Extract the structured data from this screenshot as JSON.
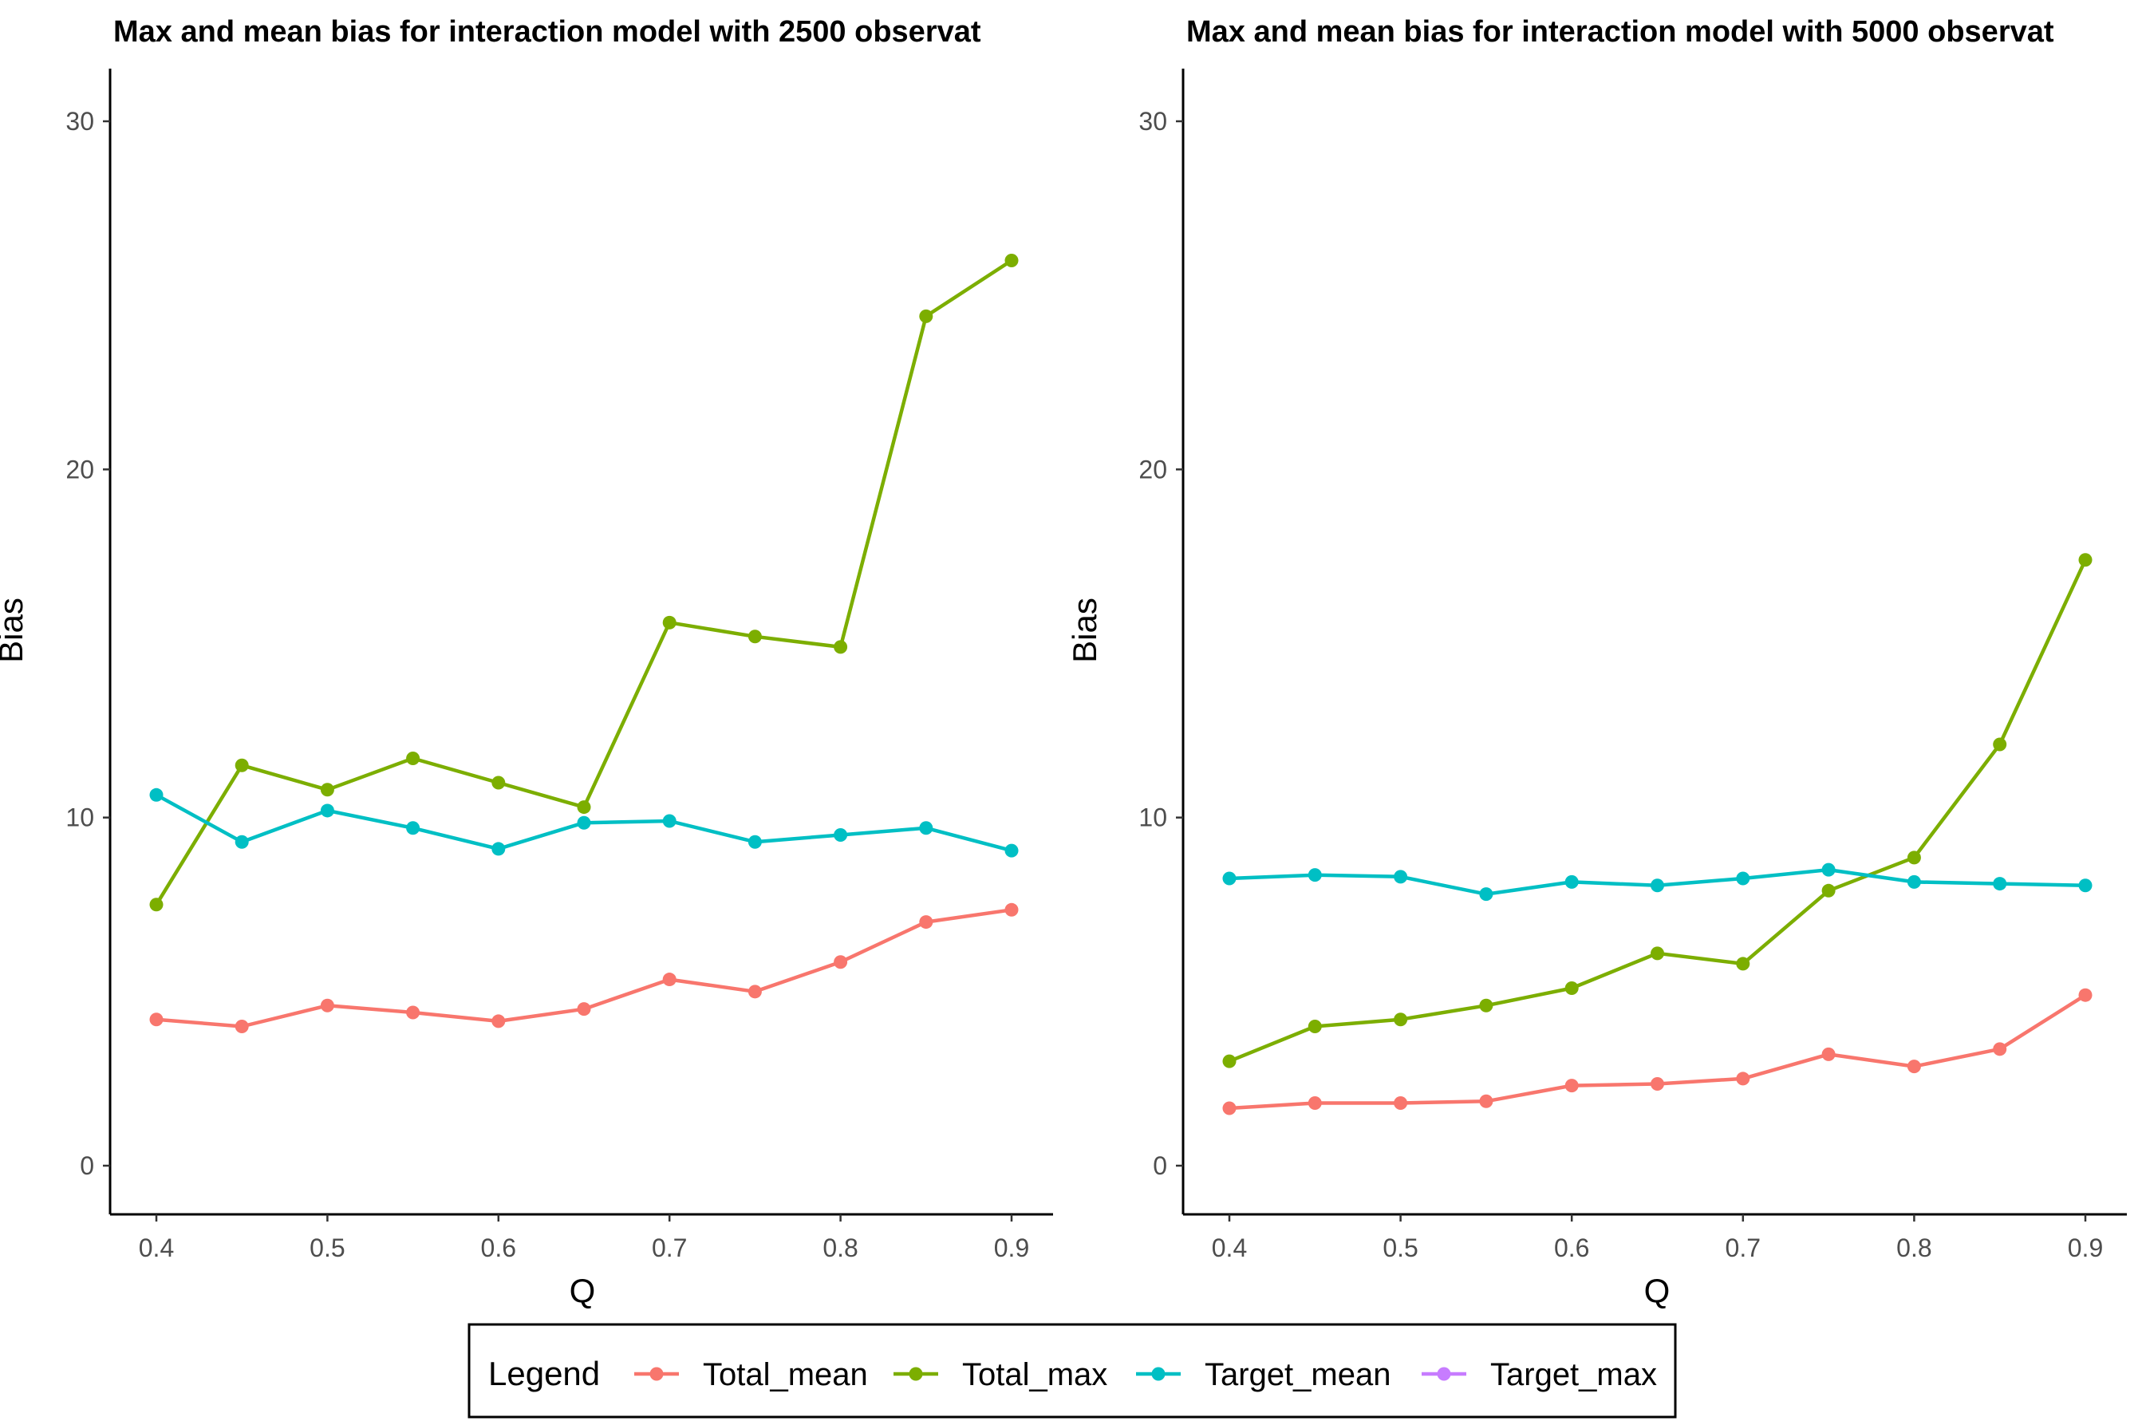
{
  "chart_data": [
    {
      "type": "line",
      "title": "Max and mean bias for interaction model with 2500 observat",
      "xlabel": "Q",
      "ylabel": "Bias",
      "x": [
        0.4,
        0.45,
        0.5,
        0.55,
        0.6,
        0.65,
        0.7,
        0.75,
        0.8,
        0.85,
        0.9
      ],
      "x_ticks": [
        "0.4",
        "0.5",
        "0.6",
        "0.7",
        "0.8",
        "0.9"
      ],
      "y_ticks": [
        "0",
        "10",
        "20",
        "30"
      ],
      "xlim": [
        0.4,
        0.9
      ],
      "ylim": [
        0,
        30
      ],
      "grid": false,
      "series": [
        {
          "name": "Total_mean",
          "color": "#F8766D",
          "values": [
            4.2,
            4.0,
            4.6,
            4.4,
            4.15,
            4.5,
            5.35,
            5.0,
            5.85,
            7.0,
            7.35
          ]
        },
        {
          "name": "Total_max",
          "color": "#7CAE00",
          "values": [
            7.5,
            11.5,
            10.8,
            11.7,
            11.0,
            10.3,
            15.6,
            15.2,
            14.9,
            24.4,
            26.0
          ]
        },
        {
          "name": "Target_mean",
          "color": "#00BFC4",
          "values": [
            10.65,
            9.3,
            10.2,
            9.7,
            9.1,
            9.85,
            9.9,
            9.3,
            9.5,
            9.7,
            9.05
          ]
        }
      ]
    },
    {
      "type": "line",
      "title": "Max and mean bias for interaction model with 5000 observat",
      "xlabel": "Q",
      "ylabel": "Bias",
      "x": [
        0.4,
        0.45,
        0.5,
        0.55,
        0.6,
        0.65,
        0.7,
        0.75,
        0.8,
        0.85,
        0.9
      ],
      "x_ticks": [
        "0.4",
        "0.5",
        "0.6",
        "0.7",
        "0.8",
        "0.9"
      ],
      "y_ticks": [
        "0",
        "10",
        "20",
        "30"
      ],
      "xlim": [
        0.4,
        0.9
      ],
      "ylim": [
        0,
        30
      ],
      "grid": false,
      "series": [
        {
          "name": "Total_mean",
          "color": "#F8766D",
          "values": [
            1.65,
            1.8,
            1.8,
            1.85,
            2.3,
            2.35,
            2.5,
            3.2,
            2.85,
            3.35,
            4.9
          ]
        },
        {
          "name": "Total_max",
          "color": "#7CAE00",
          "values": [
            3.0,
            4.0,
            4.2,
            4.6,
            5.1,
            6.1,
            5.8,
            7.9,
            8.85,
            12.1,
            17.4
          ]
        },
        {
          "name": "Target_mean",
          "color": "#00BFC4",
          "values": [
            8.25,
            8.35,
            8.3,
            7.8,
            8.15,
            8.05,
            8.25,
            8.5,
            8.15,
            8.1,
            8.05
          ]
        }
      ]
    }
  ],
  "legend": {
    "title": "Legend",
    "position": "bottom",
    "items": [
      {
        "label": "Total_mean",
        "color": "#F8766D"
      },
      {
        "label": "Total_max",
        "color": "#7CAE00"
      },
      {
        "label": "Target_mean",
        "color": "#00BFC4"
      },
      {
        "label": "Target_max",
        "color": "#C77CFF"
      }
    ]
  }
}
